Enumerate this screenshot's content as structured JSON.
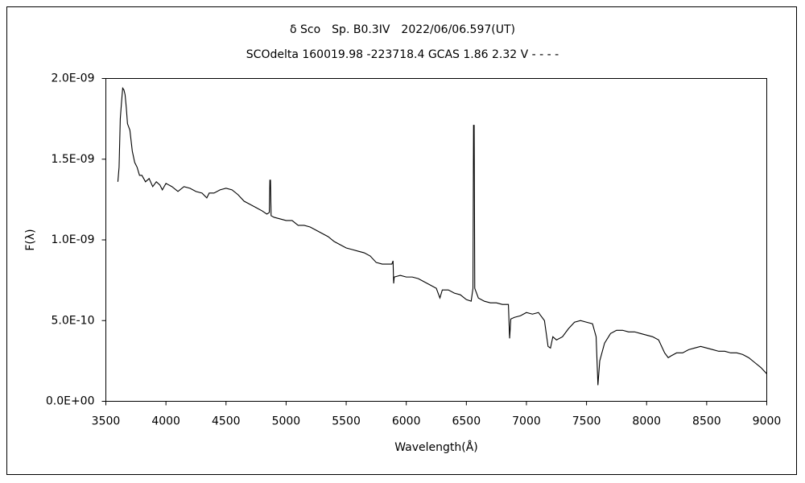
{
  "chart_data": {
    "type": "line",
    "title": "δ Sco　Sp. B0.3IV　2022/06/06.597(UT)",
    "subtitle": "SCOdelta 160019.98 -223718.4 GCAS 1.86 2.32 V - - - -",
    "x_label": "Wavelength(Å)",
    "y_label": "F(λ)",
    "color": "#000000",
    "xlim": [
      3500,
      9000
    ],
    "xticks": [
      3500,
      4000,
      4500,
      5000,
      5500,
      6000,
      6500,
      7000,
      7500,
      8000,
      8500,
      9000
    ],
    "ylim": [
      0,
      2e-09
    ],
    "yticks": [
      {
        "value": 0,
        "label": "0.0E+00"
      },
      {
        "value": 5e-10,
        "label": "5.0E-10"
      },
      {
        "value": 1e-09,
        "label": "1.0E-09"
      },
      {
        "value": 1.5e-09,
        "label": "1.5E-09"
      },
      {
        "value": 2e-09,
        "label": "2.0E-09"
      }
    ],
    "x": [
      3600,
      3610,
      3620,
      3630,
      3640,
      3650,
      3660,
      3670,
      3680,
      3700,
      3720,
      3740,
      3760,
      3780,
      3800,
      3830,
      3860,
      3890,
      3920,
      3950,
      3970,
      4000,
      4050,
      4100,
      4150,
      4200,
      4250,
      4300,
      4340,
      4360,
      4400,
      4450,
      4500,
      4550,
      4600,
      4650,
      4700,
      4750,
      4800,
      4840,
      4860,
      4865,
      4870,
      4875,
      4900,
      4950,
      5000,
      5050,
      5100,
      5150,
      5200,
      5250,
      5300,
      5350,
      5400,
      5450,
      5500,
      5550,
      5600,
      5650,
      5700,
      5750,
      5800,
      5850,
      5880,
      5890,
      5895,
      5900,
      5950,
      6000,
      6050,
      6100,
      6150,
      6200,
      6250,
      6280,
      6300,
      6350,
      6400,
      6450,
      6500,
      6540,
      6555,
      6560,
      6565,
      6570,
      6600,
      6650,
      6700,
      6750,
      6800,
      6850,
      6860,
      6870,
      6900,
      6950,
      7000,
      7050,
      7100,
      7150,
      7180,
      7200,
      7220,
      7250,
      7300,
      7350,
      7400,
      7450,
      7500,
      7550,
      7580,
      7595,
      7610,
      7650,
      7700,
      7750,
      7800,
      7850,
      7900,
      7950,
      8000,
      8050,
      8100,
      8150,
      8180,
      8200,
      8250,
      8300,
      8350,
      8400,
      8450,
      8500,
      8550,
      8600,
      8650,
      8700,
      8750,
      8800,
      8850,
      8900,
      8950,
      9000
    ],
    "values": [
      1.36e-09,
      1.45e-09,
      1.75e-09,
      1.85e-09,
      1.94e-09,
      1.93e-09,
      1.9e-09,
      1.82e-09,
      1.72e-09,
      1.68e-09,
      1.55e-09,
      1.48e-09,
      1.45e-09,
      1.4e-09,
      1.4e-09,
      1.36e-09,
      1.38e-09,
      1.33e-09,
      1.36e-09,
      1.34e-09,
      1.31e-09,
      1.35e-09,
      1.33e-09,
      1.3e-09,
      1.33e-09,
      1.32e-09,
      1.3e-09,
      1.29e-09,
      1.26e-09,
      1.29e-09,
      1.29e-09,
      1.31e-09,
      1.32e-09,
      1.31e-09,
      1.28e-09,
      1.24e-09,
      1.22e-09,
      1.2e-09,
      1.18e-09,
      1.16e-09,
      1.17e-09,
      1.37e-09,
      1.37e-09,
      1.15e-09,
      1.14e-09,
      1.13e-09,
      1.12e-09,
      1.12e-09,
      1.09e-09,
      1.09e-09,
      1.08e-09,
      1.06e-09,
      1.04e-09,
      1.02e-09,
      9.9e-10,
      9.7e-10,
      9.5e-10,
      9.4e-10,
      9.3e-10,
      9.2e-10,
      9e-10,
      8.6e-10,
      8.5e-10,
      8.5e-10,
      8.5e-10,
      8.7e-10,
      7.3e-10,
      7.7e-10,
      7.8e-10,
      7.7e-10,
      7.7e-10,
      7.6e-10,
      7.4e-10,
      7.2e-10,
      7e-10,
      6.4e-10,
      6.9e-10,
      6.9e-10,
      6.7e-10,
      6.6e-10,
      6.3e-10,
      6.2e-10,
      7e-10,
      1.71e-09,
      1.71e-09,
      7e-10,
      6.4e-10,
      6.2e-10,
      6.1e-10,
      6.1e-10,
      6e-10,
      6e-10,
      3.9e-10,
      5.1e-10,
      5.2e-10,
      5.3e-10,
      5.5e-10,
      5.4e-10,
      5.5e-10,
      5e-10,
      3.4e-10,
      3.3e-10,
      4e-10,
      3.8e-10,
      4e-10,
      4.5e-10,
      4.9e-10,
      5e-10,
      4.9e-10,
      4.8e-10,
      4e-10,
      1e-10,
      2.5e-10,
      3.6e-10,
      4.2e-10,
      4.4e-10,
      4.4e-10,
      4.3e-10,
      4.3e-10,
      4.2e-10,
      4.1e-10,
      4e-10,
      3.8e-10,
      3e-10,
      2.7e-10,
      2.8e-10,
      3e-10,
      3e-10,
      3.2e-10,
      3.3e-10,
      3.4e-10,
      3.3e-10,
      3.2e-10,
      3.1e-10,
      3.1e-10,
      3e-10,
      3e-10,
      2.9e-10,
      2.7e-10,
      2.4e-10,
      2.1e-10,
      1.7e-10
    ]
  }
}
